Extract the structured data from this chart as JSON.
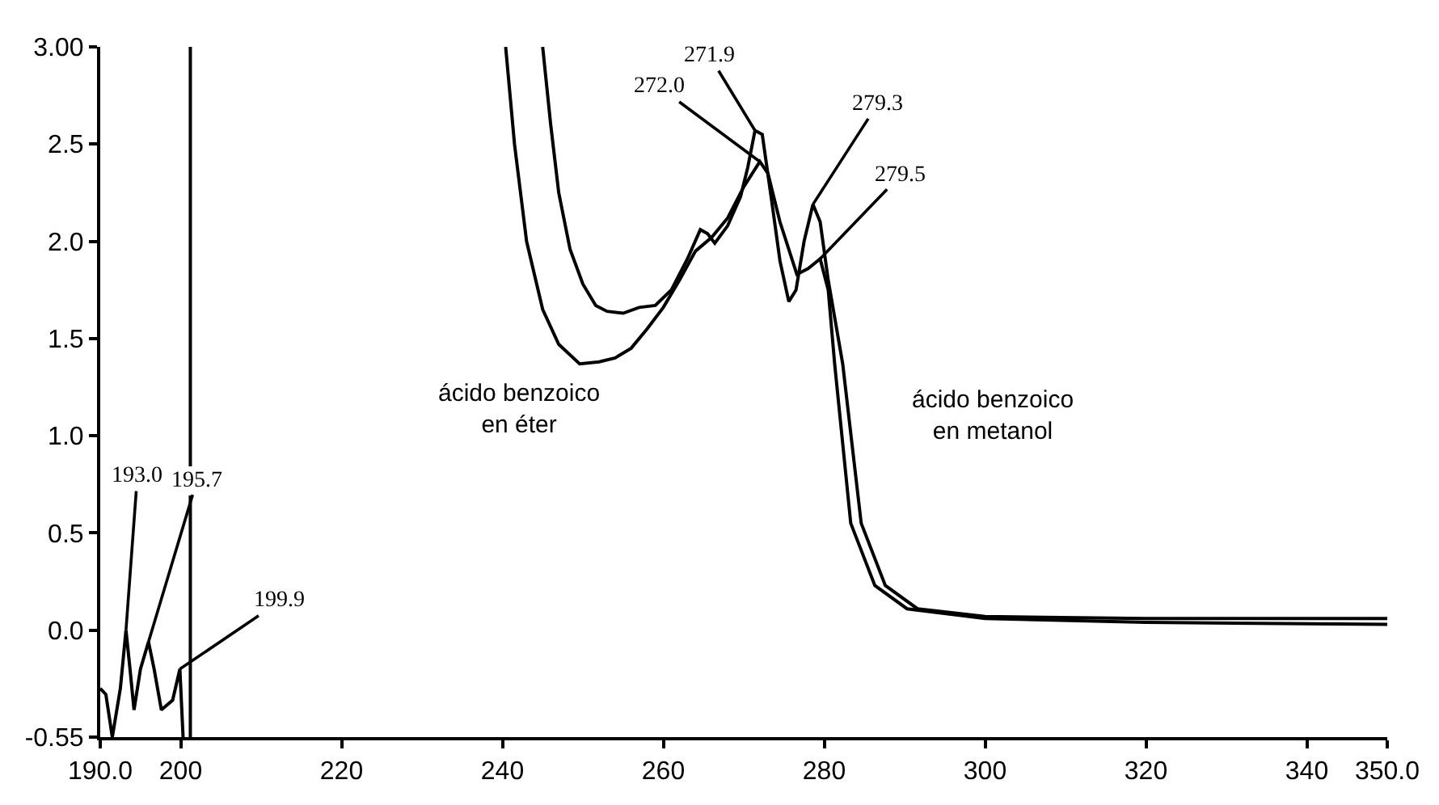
{
  "chart_data": {
    "type": "line",
    "series": [
      {
        "color": "#000000",
        "x": [
          190,
          190.7,
          191.5,
          192.5,
          193.2,
          193.7,
          194.2,
          195,
          196,
          196.7,
          197.6,
          199,
          199.9,
          200.3
        ],
        "values": [
          -0.3,
          -0.33,
          -0.55,
          -0.3,
          0.0,
          -0.2,
          -0.41,
          -0.2,
          -0.06,
          -0.2,
          -0.41,
          -0.36,
          -0.2,
          -0.55
        ]
      },
      {
        "name": "ácido benzoico en éter",
        "color": "#000000",
        "x": [
          240.4,
          241.5,
          243,
          245,
          247,
          249.6,
          252,
          254,
          256,
          258,
          260,
          262,
          264,
          266,
          268,
          270,
          272.0,
          273,
          274.5,
          276.6,
          278,
          279.5,
          280.5,
          281.3,
          283.3,
          286.3,
          290.3,
          300,
          320,
          350
        ],
        "values": [
          3.0,
          2.5,
          2.0,
          1.65,
          1.47,
          1.37,
          1.38,
          1.4,
          1.45,
          1.55,
          1.66,
          1.8,
          1.95,
          2.02,
          2.12,
          2.28,
          2.41,
          2.35,
          2.1,
          1.83,
          1.86,
          1.91,
          1.75,
          1.37,
          0.55,
          0.23,
          0.11,
          0.06,
          0.04,
          0.03
        ]
      },
      {
        "name": "ácido benzoico en metanol",
        "color": "#000000",
        "x": [
          245.0,
          246,
          247,
          248.4,
          250,
          251.6,
          253,
          255,
          257,
          259,
          261,
          263,
          264.6,
          265.5,
          266.4,
          268,
          269.6,
          270.5,
          271.4,
          272.3,
          273.5,
          274.5,
          275.6,
          276.5,
          277.5,
          278.6,
          279.5,
          280.5,
          282.3,
          284.6,
          287.6,
          291.6,
          300,
          320,
          350
        ],
        "values": [
          3.0,
          2.6,
          2.25,
          1.96,
          1.78,
          1.67,
          1.64,
          1.63,
          1.66,
          1.67,
          1.75,
          1.91,
          2.06,
          2.04,
          1.99,
          2.08,
          2.23,
          2.38,
          2.57,
          2.55,
          2.2,
          1.9,
          1.69,
          1.75,
          2.0,
          2.19,
          2.1,
          1.8,
          1.37,
          0.55,
          0.23,
          0.11,
          0.07,
          0.06,
          0.06
        ]
      }
    ],
    "xlim": [
      190,
      350
    ],
    "xticks": [
      {
        "value": 190,
        "label": "190.0"
      },
      200,
      220,
      240,
      260,
      280,
      300,
      320,
      340,
      {
        "value": 350,
        "label": "350.0"
      }
    ],
    "ylim": [
      -0.55,
      3.0
    ],
    "yticks": [
      {
        "value": -0.55,
        "label": "-0.55"
      },
      {
        "value": 0,
        "label": "0.0"
      },
      0.5,
      {
        "value": 1,
        "label": "1.0"
      },
      1.5,
      {
        "value": 2,
        "label": "2.0"
      },
      2.5,
      {
        "value": 3,
        "label": "3.00"
      }
    ],
    "ref_lines": [
      {
        "axis": "x",
        "value": 201.2,
        "color": "#000000"
      }
    ],
    "annotations": [
      {
        "text": "193.0",
        "x": 193.2,
        "y": 0.0
      },
      {
        "text": "195.7",
        "x": 196,
        "y": -0.06
      },
      {
        "text": "199.9",
        "x": 199.9,
        "y": -0.2
      },
      {
        "text": "271.9",
        "x": 271.4,
        "y": 2.57
      },
      {
        "text": "272.0",
        "x": 272.0,
        "y": 2.41
      },
      {
        "text": "279.3",
        "x": 278.6,
        "y": 2.19
      },
      {
        "text": "279.5",
        "x": 279.5,
        "y": 1.91
      }
    ],
    "legend": false,
    "marker": "none",
    "line_style": "solid"
  }
}
